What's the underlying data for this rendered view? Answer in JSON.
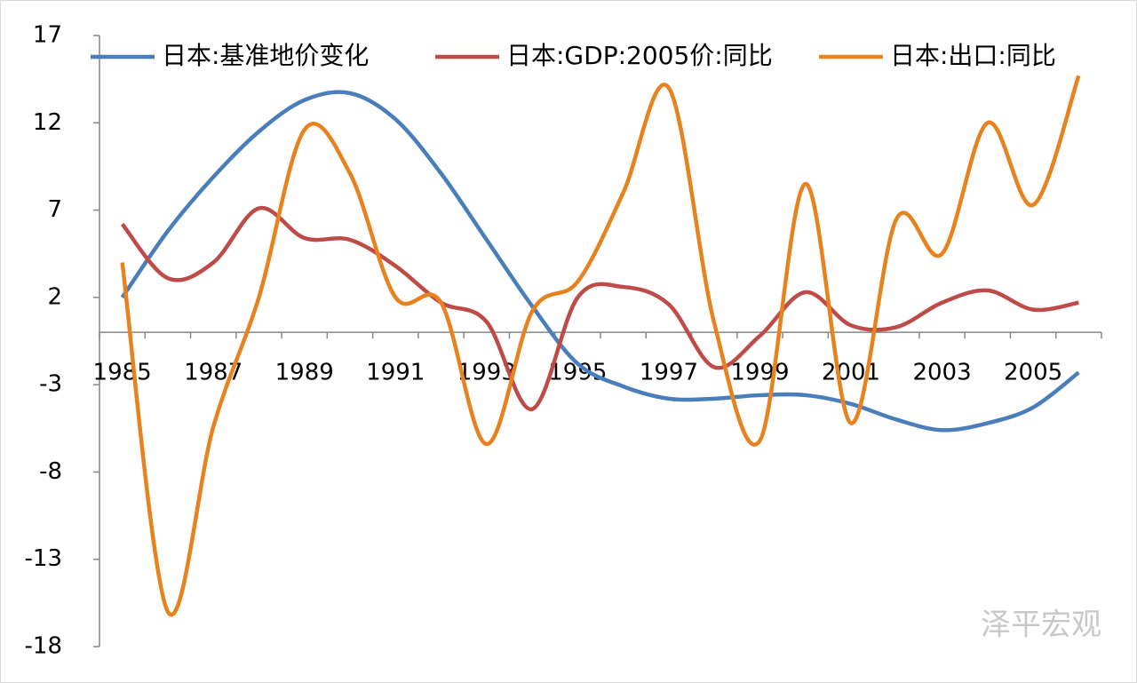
{
  "chart_data": {
    "type": "line",
    "categories": [
      "1985",
      null,
      "1987",
      null,
      "1989",
      null,
      "1991",
      null,
      "1993",
      null,
      "1995",
      null,
      "1997",
      null,
      "1999",
      null,
      "2001",
      null,
      "2003",
      null,
      "2005",
      null
    ],
    "series": [
      {
        "name": "日本:基准地价变化",
        "color": "#4a7ebb",
        "values": [
          2.0,
          5.8,
          8.9,
          11.5,
          13.3,
          13.7,
          12.2,
          9.1,
          5.3,
          1.5,
          -1.8,
          -3.1,
          -3.8,
          -3.8,
          -3.6,
          -3.6,
          -4.1,
          -5.0,
          -5.6,
          -5.2,
          -4.3,
          -2.3
        ]
      },
      {
        "name": "日本:GDP:2005价:同比",
        "color": "#be4b48",
        "values": [
          6.2,
          3.1,
          4.0,
          7.1,
          5.4,
          5.3,
          3.8,
          1.7,
          0.6,
          -4.4,
          2.0,
          2.6,
          1.6,
          -2.0,
          -0.2,
          2.3,
          0.4,
          0.3,
          1.7,
          2.4,
          1.3,
          1.7
        ]
      },
      {
        "name": "日本:出口:同比",
        "color": "#e8821e",
        "values": [
          4.0,
          -16.0,
          -5.4,
          2.0,
          11.6,
          9.1,
          2.0,
          1.7,
          -6.4,
          1.2,
          2.9,
          8.0,
          14.0,
          0.5,
          -6.2,
          8.5,
          -5.2,
          6.5,
          4.5,
          12.0,
          7.3,
          14.7
        ]
      }
    ],
    "ylim": [
      -18,
      17
    ],
    "yticks": [
      -18,
      -13,
      -8,
      -3,
      2,
      7,
      12,
      17
    ],
    "grid": false,
    "legend": "top",
    "smooth": true,
    "watermark": "泽平宏观"
  }
}
